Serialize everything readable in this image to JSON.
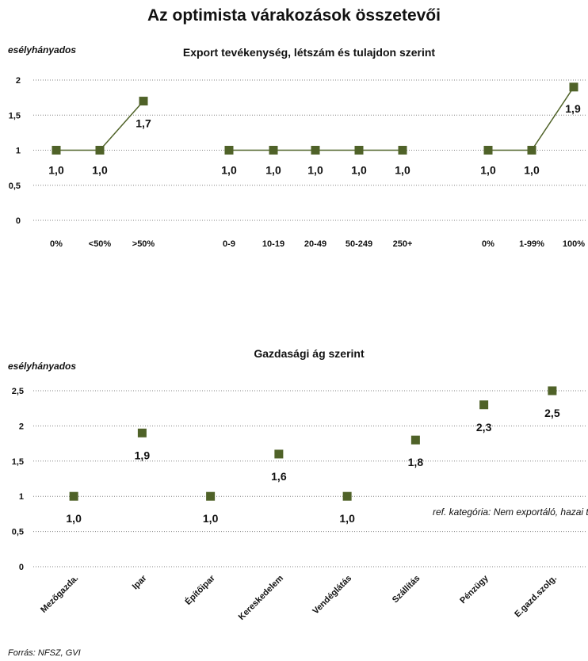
{
  "title": "Az optimista várakozások összetevői",
  "source": "Forrás: NFSZ, GVI",
  "colors": {
    "marker": "#4f6228",
    "line": "#4f6228",
    "grid": "#808080"
  },
  "chart_data": [
    {
      "type": "line",
      "title": "Export tevékenység, létszám és tulajdon szerint",
      "ylabel": "esélyhányados",
      "ylim": [
        0,
        2
      ],
      "yticks": [
        "0",
        "0,5",
        "1",
        "1,5",
        "2"
      ],
      "grid": "horizontal-dotted",
      "groups": [
        {
          "categories": [
            "0%",
            "<50%",
            ">50%"
          ],
          "values": [
            1.0,
            1.0,
            1.7
          ],
          "labels": [
            "1,0",
            "1,0",
            "1,7"
          ]
        },
        {
          "categories": [
            "0-9",
            "10-19",
            "20-49",
            "50-249",
            "250+"
          ],
          "values": [
            1.0,
            1.0,
            1.0,
            1.0,
            1.0
          ],
          "labels": [
            "1,0",
            "1,0",
            "1,0",
            "1,0",
            "1,0"
          ]
        },
        {
          "categories": [
            "0%",
            "1-99%",
            "100%"
          ],
          "values": [
            1.0,
            1.0,
            1.9
          ],
          "labels": [
            "1,0",
            "1,0",
            "1,9"
          ]
        }
      ]
    },
    {
      "type": "scatter",
      "title": "Gazdasági ág szerint",
      "ylabel": "esélyhányados",
      "ylim": [
        0,
        2.5
      ],
      "yticks": [
        "0",
        "0,5",
        "1",
        "1,5",
        "2",
        "2,5"
      ],
      "grid": "horizontal-dotted",
      "categories": [
        "Mezőgazda.",
        "Ipar",
        "Építőipar",
        "Kereskedelem",
        "Vendéglátás",
        "Szállítás",
        "Pénzügy",
        "E.gazd.szolg."
      ],
      "values": [
        1.0,
        1.9,
        1.0,
        1.6,
        1.0,
        1.8,
        2.3,
        2.5
      ],
      "labels": [
        "1,0",
        "1,9",
        "1,0",
        "1,6",
        "1,0",
        "1,8",
        "2,3",
        "2,5"
      ],
      "note": "ref. kategória: Nem exportáló, hazai tulajdonban lévő, mezőgazdasági,  mikrócé"
    }
  ]
}
